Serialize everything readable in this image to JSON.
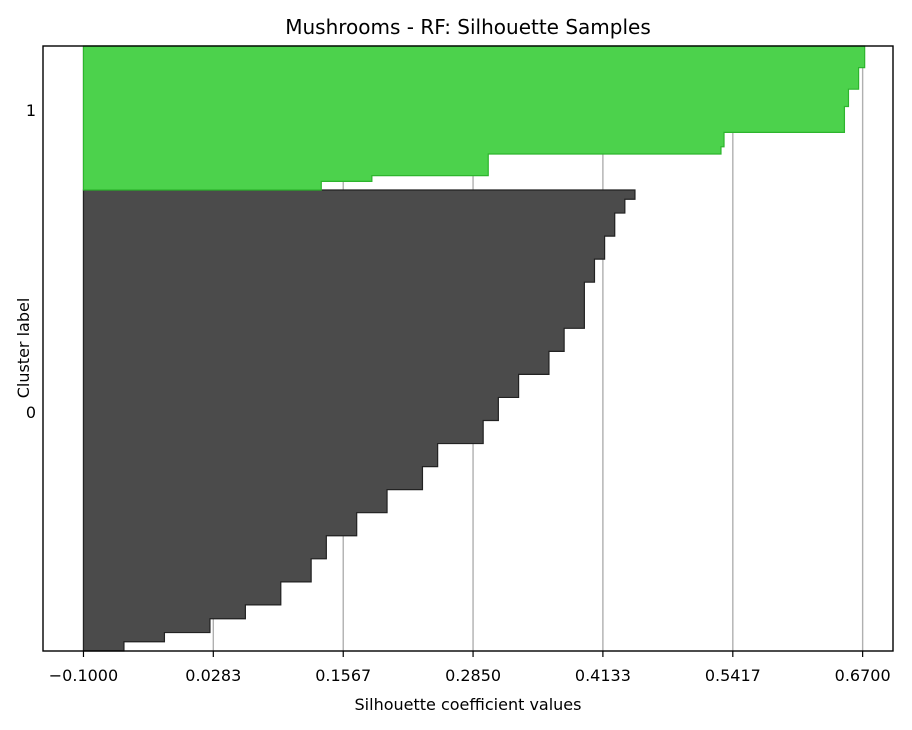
{
  "chart_data": {
    "type": "area",
    "title": "Mushrooms - RF: Silhouette Samples",
    "xlabel": "Silhouette coefficient values",
    "ylabel": "Cluster label",
    "xlim": [
      -0.14,
      0.7
    ],
    "xticks": [
      -0.1,
      0.0283,
      0.1567,
      0.285,
      0.4133,
      0.5417,
      0.67
    ],
    "xtick_labels": [
      "−0.1000",
      "0.0283",
      "0.1567",
      "0.2850",
      "0.4133",
      "0.5417",
      "0.6700"
    ],
    "grid": "vertical",
    "colors": {
      "cluster_0": "#4b4b4b",
      "cluster_1": "#4cd24c",
      "cluster_1_edge": "#2db52d",
      "grid": "#b0b0b0"
    },
    "clusters": [
      {
        "label": "0",
        "color": "#4b4b4b",
        "samples_sorted_desc_percentile": [
          0,
          0.02,
          0.05,
          0.1,
          0.15,
          0.2,
          0.3,
          0.35,
          0.4,
          0.45,
          0.5,
          0.55,
          0.6,
          0.65,
          0.7,
          0.75,
          0.8,
          0.85,
          0.9,
          0.93,
          0.96,
          0.98,
          1.0
        ],
        "silhouette_values": [
          0.445,
          0.435,
          0.425,
          0.415,
          0.405,
          0.395,
          0.375,
          0.36,
          0.33,
          0.31,
          0.295,
          0.25,
          0.235,
          0.2,
          0.17,
          0.14,
          0.125,
          0.095,
          0.06,
          0.025,
          -0.02,
          -0.06,
          -0.1
        ]
      },
      {
        "label": "1",
        "color": "#4cd24c",
        "samples_sorted_desc_percentile": [
          0,
          0.15,
          0.3,
          0.42,
          0.6,
          0.7,
          0.75,
          0.9,
          0.94,
          1.0
        ],
        "silhouette_values": [
          0.672,
          0.666,
          0.656,
          0.652,
          0.533,
          0.53,
          0.3,
          0.185,
          0.135,
          -0.1
        ]
      }
    ],
    "ytick_labels": [
      "0",
      "1"
    ]
  }
}
